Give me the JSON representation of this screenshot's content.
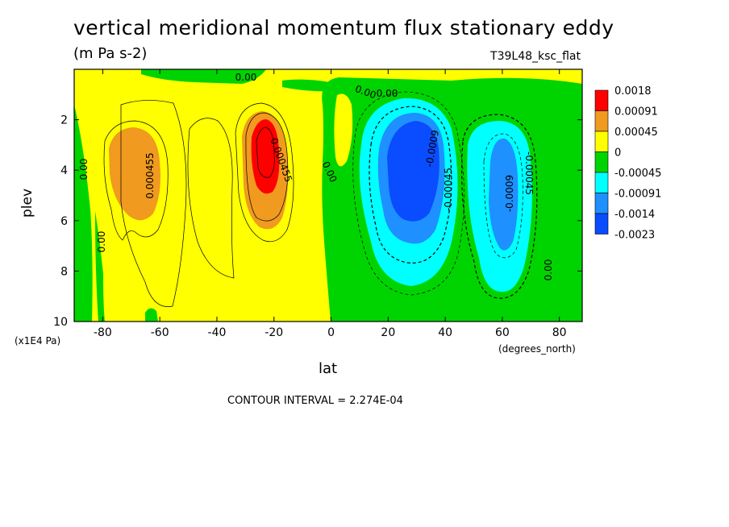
{
  "header": {
    "title": "vertical meridional momentum flux stationary eddy",
    "units": "(m Pa s-2)",
    "run": "T39L48_ksc_flat"
  },
  "footer": {
    "contour_interval": "CONTOUR INTERVAL = 2.274E-04"
  },
  "chart_data": {
    "type": "heatmap",
    "xlabel": "lat",
    "xunits": "(degrees_north)",
    "ylabel": "plev",
    "yunits": "(x1E4 Pa)",
    "xlim": [
      -90,
      88
    ],
    "ylim": [
      10,
      0
    ],
    "x_ticks": [
      -80,
      -60,
      -40,
      -20,
      0,
      20,
      40,
      60,
      80
    ],
    "y_ticks": [
      2,
      4,
      6,
      8,
      10
    ],
    "legend": {
      "labels": [
        "0.0018",
        "0.00091",
        "0.00045",
        "0",
        "-0.00045",
        "-0.00091",
        "-0.0014",
        "-0.0023"
      ],
      "colors": [
        "#ff0000",
        "#f09a1f",
        "#ffff00",
        "#00d400",
        "#00ffff",
        "#1e90ff",
        "#0a4cff"
      ]
    },
    "features": [
      {
        "name": "positive-max-nh",
        "lat": -20,
        "plev": 3.5,
        "value": 0.0018
      },
      {
        "name": "positive-sh",
        "lat": -68,
        "plev": 4.2,
        "value": 0.00091
      },
      {
        "name": "negative-max-mid",
        "lat": 28,
        "plev": 4.0,
        "value": -0.0023
      },
      {
        "name": "negative-high",
        "lat": 62,
        "plev": 4.5,
        "value": -0.0014
      }
    ],
    "contour_labels": [
      "0.00",
      "0.00",
      "0.000455",
      "0.000455",
      "0.00",
      "0.00",
      "-0.0009",
      "-0.00045",
      "-0.0009",
      "-0.00045",
      "0.00",
      "0.00",
      "0.00"
    ]
  }
}
